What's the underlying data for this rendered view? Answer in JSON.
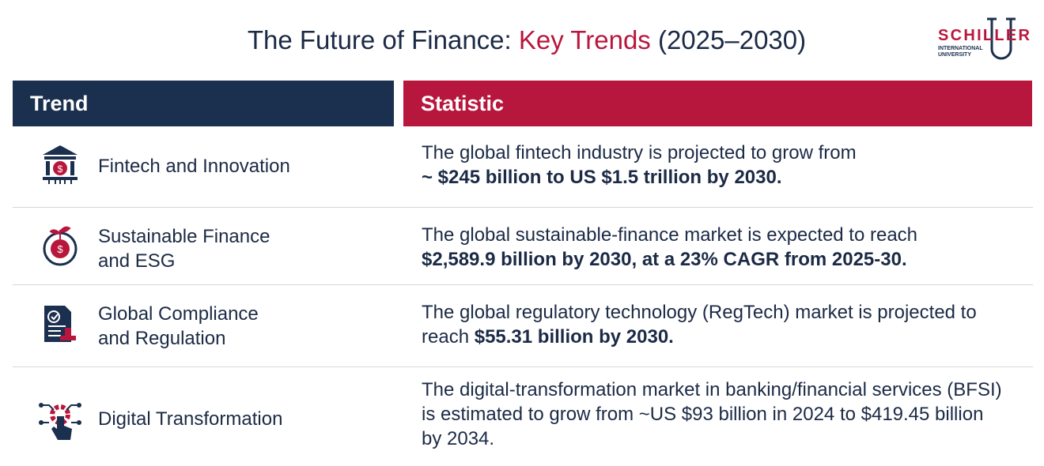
{
  "header": {
    "title": [
      "The Future of Finance:",
      "Key Trends",
      "(2025–2030)"
    ],
    "logo": {
      "name": "SCHILLER",
      "line1": "INTERNATIONAL",
      "line2": "UNIVERSITY"
    }
  },
  "table": {
    "columns": [
      "Trend",
      "Statistic"
    ],
    "rows": [
      {
        "trend": [
          "Fintech and Innovation"
        ],
        "statistic": {
          "regular": "The global fintech industry is projected to grow from",
          "bold": "~ $245 billion to US $1.5 trillion by 2030."
        }
      },
      {
        "trend": [
          "Sustainable Finance",
          "and ESG"
        ],
        "statistic": {
          "regular": "The global sustainable-finance market is expected to reach",
          "bold": "$2,589.9 billion by 2030, at a 23% CAGR from 2025-30."
        }
      },
      {
        "trend": [
          "Global Compliance",
          "and Regulation"
        ],
        "statistic": {
          "regular": "The global regulatory technology (RegTech) market is projected to reach",
          "bold": "$55.31 billion by 2030."
        }
      },
      {
        "trend": [
          "Digital Transformation"
        ],
        "statistic": {
          "regular": "The digital-transformation market in banking/financial services (BFSI) is estimated to grow from ~US $93 billion in 2024 to $419.45 billion by 2034."
        }
      }
    ]
  }
}
